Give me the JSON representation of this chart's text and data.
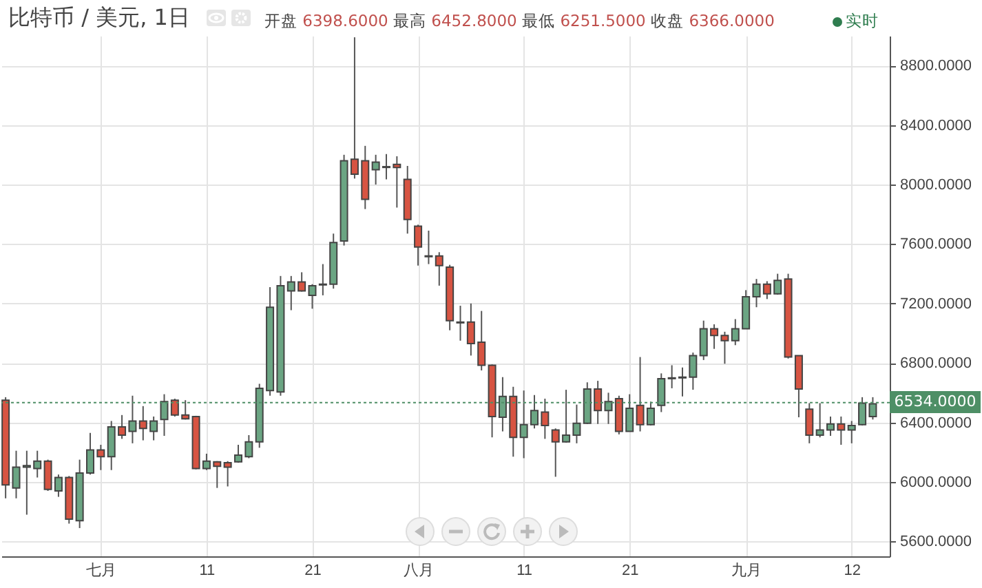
{
  "chart_data": {
    "type": "candlestick",
    "title": "比特币 / 美元, 1日",
    "annotations": [
      "开盘 6398.6000 最高 6452.8000 最低 6251.5000 收盘 6366.0000",
      "实时"
    ],
    "categories": [
      null,
      null,
      null,
      null,
      null,
      null,
      null,
      null,
      null,
      "七月",
      null,
      null,
      null,
      null,
      null,
      null,
      null,
      null,
      null,
      "11",
      null,
      null,
      null,
      null,
      null,
      null,
      null,
      null,
      null,
      "21",
      null,
      null,
      null,
      null,
      null,
      null,
      null,
      null,
      null,
      "八月",
      null,
      null,
      null,
      null,
      null,
      null,
      null,
      null,
      null,
      "11",
      null,
      null,
      null,
      null,
      null,
      null,
      null,
      null,
      null,
      "21",
      null,
      null,
      null,
      null,
      null,
      null,
      null,
      null,
      null,
      null,
      "九月",
      null,
      null,
      null,
      null,
      null,
      null,
      null,
      null,
      null,
      "12",
      null,
      null
    ],
    "ohlc": [
      [
        6550,
        6570,
        5890,
        5980
      ],
      [
        5960,
        6210,
        5890,
        6100
      ],
      [
        6100,
        6210,
        5780,
        6110
      ],
      [
        6090,
        6210,
        6030,
        6140
      ],
      [
        6140,
        6150,
        5940,
        5950
      ],
      [
        5940,
        6050,
        5900,
        6030
      ],
      [
        6030,
        6040,
        5720,
        5750
      ],
      [
        5740,
        6150,
        5690,
        6060
      ],
      [
        6060,
        6330,
        6050,
        6215
      ],
      [
        6215,
        6250,
        6080,
        6170
      ],
      [
        6170,
        6410,
        6080,
        6370
      ],
      [
        6370,
        6450,
        6290,
        6315
      ],
      [
        6340,
        6580,
        6260,
        6410
      ],
      [
        6410,
        6510,
        6280,
        6360
      ],
      [
        6340,
        6440,
        6280,
        6410
      ],
      [
        6420,
        6590,
        6310,
        6540
      ],
      [
        6550,
        6560,
        6440,
        6450
      ],
      [
        6450,
        6550,
        6420,
        6425
      ],
      [
        6440,
        6445,
        6085,
        6090
      ],
      [
        6090,
        6190,
        6080,
        6140
      ],
      [
        6135,
        6140,
        5960,
        6105
      ],
      [
        6130,
        6140,
        5970,
        6100
      ],
      [
        6135,
        6250,
        6130,
        6180
      ],
      [
        6170,
        6315,
        6160,
        6270
      ],
      [
        6270,
        6660,
        6230,
        6630
      ],
      [
        6615,
        7310,
        6580,
        7175
      ],
      [
        6605,
        7385,
        6580,
        7320
      ],
      [
        7285,
        7385,
        7155,
        7345
      ],
      [
        7345,
        7410,
        7280,
        7285
      ],
      [
        7255,
        7330,
        7165,
        7320
      ],
      [
        7325,
        7465,
        7255,
        7330
      ],
      [
        7330,
        7670,
        7300,
        7610
      ],
      [
        7620,
        8200,
        7590,
        8160
      ],
      [
        8170,
        8990,
        8040,
        8070
      ],
      [
        8160,
        8260,
        7835,
        7900
      ],
      [
        8100,
        8200,
        8000,
        8150
      ],
      [
        8115,
        8205,
        8035,
        8120
      ],
      [
        8135,
        8190,
        7845,
        8115
      ],
      [
        8035,
        8125,
        7670,
        7765
      ],
      [
        7720,
        7730,
        7455,
        7580
      ],
      [
        7520,
        7690,
        7465,
        7515
      ],
      [
        7520,
        7545,
        7320,
        7455
      ],
      [
        7445,
        7460,
        7020,
        7085
      ],
      [
        7075,
        7185,
        6950,
        7070
      ],
      [
        7075,
        7200,
        6850,
        6930
      ],
      [
        6940,
        7150,
        6750,
        6785
      ],
      [
        6785,
        6790,
        6300,
        6440
      ],
      [
        6435,
        6705,
        6340,
        6575
      ],
      [
        6575,
        6640,
        6170,
        6300
      ],
      [
        6300,
        6615,
        6160,
        6385
      ],
      [
        6385,
        6585,
        6360,
        6480
      ],
      [
        6470,
        6560,
        6290,
        6380
      ],
      [
        6350,
        6360,
        6035,
        6270
      ],
      [
        6270,
        6620,
        6265,
        6315
      ],
      [
        6315,
        6520,
        6260,
        6395
      ],
      [
        6395,
        6670,
        6390,
        6625
      ],
      [
        6625,
        6680,
        6390,
        6480
      ],
      [
        6480,
        6600,
        6390,
        6540
      ],
      [
        6560,
        6580,
        6320,
        6340
      ],
      [
        6340,
        6590,
        6340,
        6495
      ],
      [
        6515,
        6840,
        6340,
        6385
      ],
      [
        6385,
        6540,
        6380,
        6495
      ],
      [
        6515,
        6730,
        6470,
        6695
      ],
      [
        6695,
        6785,
        6630,
        6700
      ],
      [
        6705,
        6770,
        6575,
        6700
      ],
      [
        6705,
        6870,
        6620,
        6850
      ],
      [
        6850,
        7085,
        6820,
        7030
      ],
      [
        7030,
        7060,
        6895,
        6985
      ],
      [
        6985,
        7010,
        6795,
        6950
      ],
      [
        6950,
        7095,
        6920,
        7030
      ],
      [
        7030,
        7290,
        7030,
        7245
      ],
      [
        7245,
        7365,
        7175,
        7330
      ],
      [
        7330,
        7350,
        7230,
        7265
      ],
      [
        7265,
        7400,
        7260,
        7355
      ],
      [
        7365,
        7400,
        6830,
        6840
      ],
      [
        6850,
        6850,
        6435,
        6625
      ],
      [
        6490,
        6530,
        6260,
        6315
      ],
      [
        6315,
        6530,
        6300,
        6350
      ],
      [
        6350,
        6440,
        6310,
        6390
      ],
      [
        6390,
        6440,
        6250,
        6350
      ],
      [
        6350,
        6410,
        6260,
        6380
      ],
      [
        6385,
        6570,
        6380,
        6530
      ],
      [
        6440,
        6570,
        6420,
        6525
      ]
    ],
    "colors": [
      "#d75442",
      "#6ba583",
      "#6ba583",
      "#6ba583",
      "#d75442",
      "#6ba583",
      "#d75442",
      "#6ba583",
      "#6ba583",
      "#d75442",
      "#6ba583",
      "#d75442",
      "#6ba583",
      "#d75442",
      "#6ba583",
      "#6ba583",
      "#d75442",
      "#d75442",
      "#d75442",
      "#6ba583",
      "#d75442",
      "#d75442",
      "#6ba583",
      "#6ba583",
      "#6ba583",
      "#6ba583",
      "#6ba583",
      "#6ba583",
      "#d75442",
      "#6ba583",
      "#6ba583",
      "#6ba583",
      "#6ba583",
      "#d75442",
      "#d75442",
      "#6ba583",
      "#6ba583",
      "#d75442",
      "#d75442",
      "#d75442",
      "#d75442",
      "#d75442",
      "#d75442",
      "#d75442",
      "#d75442",
      "#d75442",
      "#d75442",
      "#6ba583",
      "#d75442",
      "#6ba583",
      "#6ba583",
      "#d75442",
      "#d75442",
      "#6ba583",
      "#6ba583",
      "#6ba583",
      "#d75442",
      "#6ba583",
      "#d75442",
      "#6ba583",
      "#d75442",
      "#6ba583",
      "#6ba583",
      "#6ba583",
      "#d75442",
      "#6ba583",
      "#6ba583",
      "#d75442",
      "#d75442",
      "#6ba583",
      "#6ba583",
      "#6ba583",
      "#d75442",
      "#6ba583",
      "#d75442",
      "#d75442",
      "#d75442",
      "#6ba583",
      "#6ba583",
      "#d75442",
      "#6ba583",
      "#6ba583",
      "#6ba583"
    ],
    "ylim": [
      5500,
      9000
    ],
    "yticks": [
      {
        "value": 5600,
        "label": "5600.0000"
      },
      {
        "value": 6000,
        "label": "6000.0000"
      },
      {
        "value": 6400,
        "label": "6400.0000"
      },
      {
        "value": 6800,
        "label": "6800.0000"
      },
      {
        "value": 7200,
        "label": "7200.0000"
      },
      {
        "value": 7600,
        "label": "7600.0000"
      },
      {
        "value": 8000,
        "label": "8000.0000"
      },
      {
        "value": 8400,
        "label": "8400.0000"
      },
      {
        "value": 8800,
        "label": "8800.0000"
      }
    ],
    "ref_lines": [
      {
        "axis": "y",
        "value": 6534,
        "label": "6534.0000",
        "color": "#4e8f66",
        "line_style": "dotted"
      }
    ],
    "grid": true
  }
}
